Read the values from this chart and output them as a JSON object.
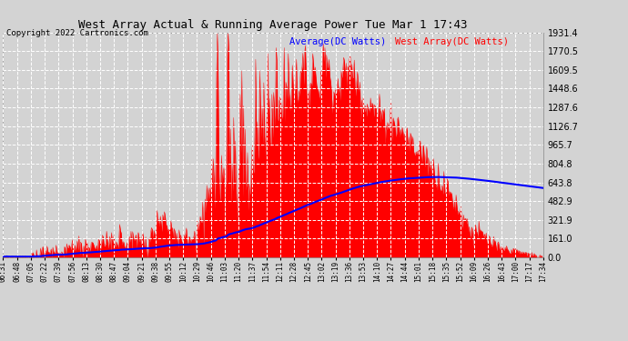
{
  "title": "West Array Actual & Running Average Power Tue Mar 1 17:43",
  "copyright": "Copyright 2022 Cartronics.com",
  "legend_avg": "Average(DC Watts)",
  "legend_west": "West Array(DC Watts)",
  "ylabel_values": [
    0.0,
    161.0,
    321.9,
    482.9,
    643.8,
    804.8,
    965.7,
    1126.7,
    1287.6,
    1448.6,
    1609.5,
    1770.5,
    1931.4
  ],
  "ymax": 1931.4,
  "ymin": 0.0,
  "bg_color": "#d3d3d3",
  "plot_bg_color": "#d3d3d3",
  "fill_color": "red",
  "avg_line_color": "blue",
  "title_color": "black",
  "avg_legend_color": "blue",
  "west_legend_color": "red",
  "grid_color": "white",
  "grid_style": "--",
  "x_tick_labels": [
    "06:31",
    "06:48",
    "07:05",
    "07:22",
    "07:39",
    "07:56",
    "08:13",
    "08:30",
    "08:47",
    "09:04",
    "09:21",
    "09:38",
    "09:55",
    "10:12",
    "10:29",
    "10:46",
    "11:03",
    "11:20",
    "11:37",
    "11:54",
    "12:11",
    "12:28",
    "12:45",
    "13:02",
    "13:19",
    "13:36",
    "13:53",
    "14:10",
    "14:27",
    "14:44",
    "15:01",
    "15:18",
    "15:35",
    "15:52",
    "16:09",
    "16:26",
    "16:43",
    "17:00",
    "17:17",
    "17:34"
  ]
}
